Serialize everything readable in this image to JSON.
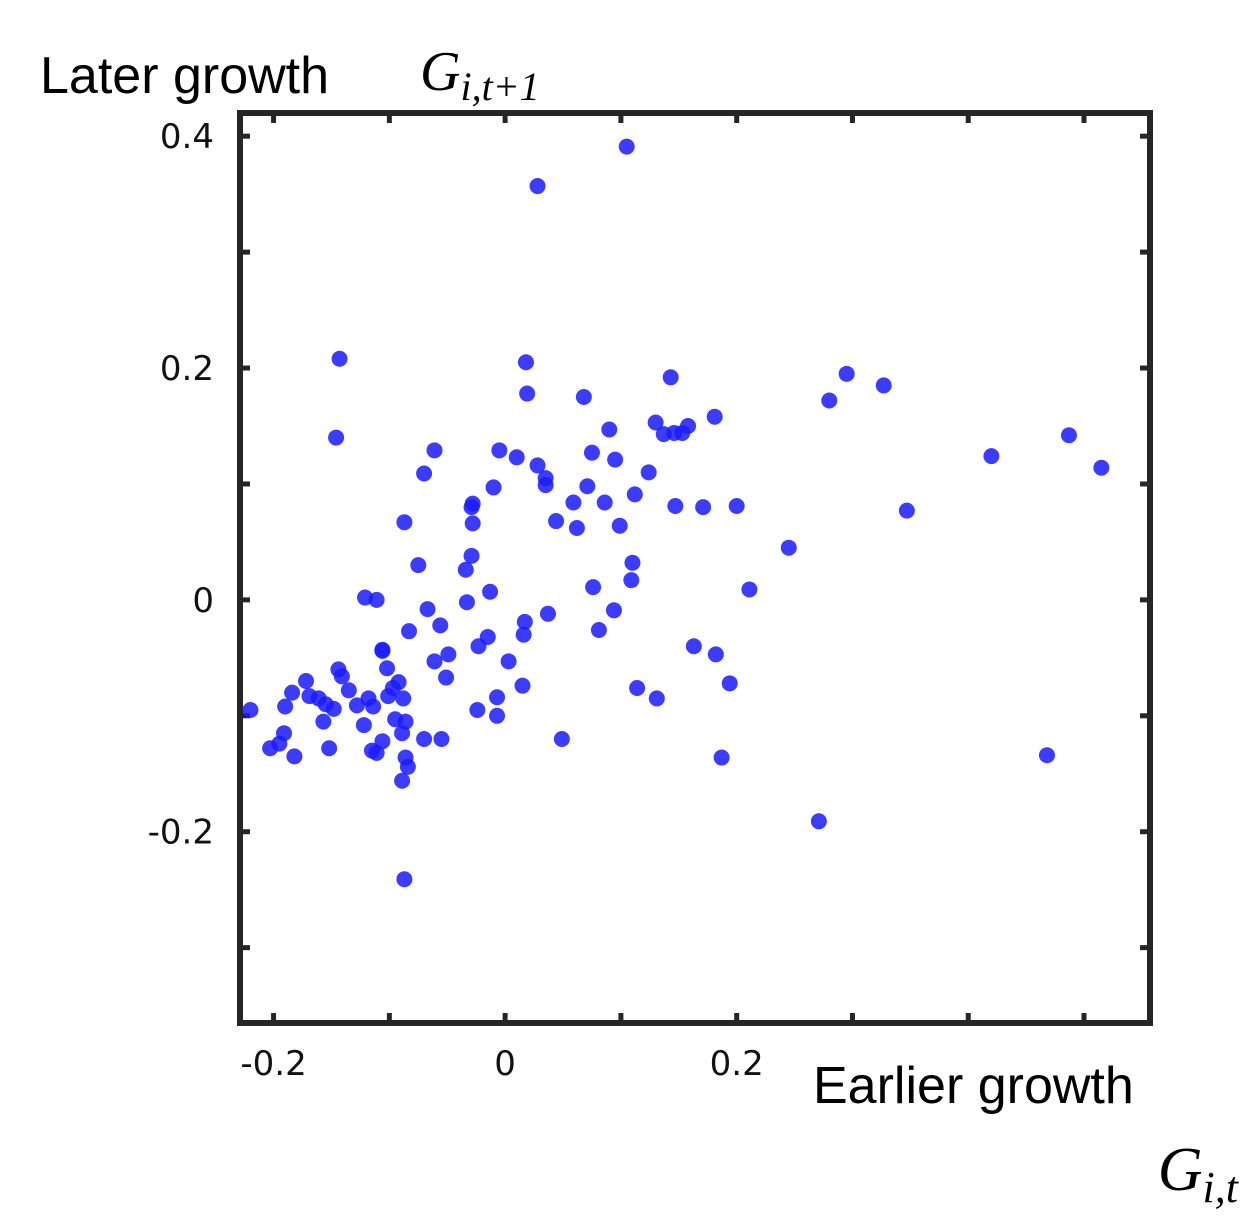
{
  "chart_data": {
    "type": "scatter",
    "y_label": "Later growth",
    "y_label_math": {
      "base": "G",
      "sub": "i,t+1"
    },
    "x_label": "Earlier growth",
    "x_label_math": {
      "base": "G",
      "sub": "i,t"
    },
    "xlim": [
      -0.229,
      0.557
    ],
    "ylim": [
      -0.365,
      0.42
    ],
    "xticks": [
      -0.2,
      {
        "value": -0.1,
        "label": null
      },
      0,
      {
        "value": 0.1,
        "label": null
      },
      0.2,
      {
        "value": 0.3,
        "label": null
      },
      {
        "value": 0.4,
        "label": null
      },
      {
        "value": 0.5,
        "label": null
      }
    ],
    "yticks": [
      {
        "value": -0.3,
        "label": null
      },
      -0.2,
      {
        "value": -0.1,
        "label": null
      },
      0,
      {
        "value": 0.1,
        "label": null
      },
      0.2,
      {
        "value": 0.3,
        "label": null
      },
      0.4
    ],
    "grid": false,
    "series": [
      {
        "name": null,
        "color": "#1a1aff",
        "x": [
          0.105,
          0.028,
          -0.143,
          0.018,
          -0.146,
          0.019,
          0.068,
          0.143,
          0.295,
          0.327,
          0.28,
          0.181,
          0.13,
          0.158,
          0.137,
          0.146,
          0.153,
          0.09,
          0.487,
          -0.061,
          -0.005,
          0.075,
          0.01,
          0.095,
          0.42,
          0.515,
          0.028,
          0.124,
          -0.07,
          0.035,
          0.035,
          -0.01,
          0.071,
          0.112,
          0.059,
          0.086,
          -0.028,
          -0.029,
          0.147,
          0.171,
          0.2,
          0.347,
          0.044,
          -0.087,
          -0.028,
          0.062,
          0.099,
          0.245,
          -0.029,
          0.11,
          -0.075,
          -0.034,
          0.076,
          0.109,
          0.211,
          -0.013,
          -0.121,
          -0.111,
          -0.033,
          -0.067,
          0.094,
          0.037,
          0.017,
          0.016,
          -0.056,
          -0.083,
          -0.015,
          0.081,
          -0.023,
          0.163,
          0.182,
          -0.106,
          -0.049,
          -0.106,
          0.003,
          -0.061,
          -0.144,
          -0.102,
          -0.141,
          -0.051,
          -0.172,
          -0.092,
          0.194,
          0.114,
          -0.097,
          0.015,
          -0.135,
          -0.184,
          -0.169,
          -0.101,
          -0.161,
          -0.118,
          -0.088,
          0.131,
          -0.007,
          -0.155,
          -0.19,
          -0.128,
          -0.114,
          -0.148,
          -0.22,
          -0.024,
          -0.007,
          -0.095,
          -0.086,
          -0.157,
          -0.122,
          -0.191,
          -0.089,
          -0.106,
          -0.07,
          -0.055,
          0.049,
          -0.195,
          -0.203,
          -0.152,
          -0.115,
          -0.111,
          -0.182,
          -0.086,
          0.187,
          0.468,
          -0.084,
          -0.089,
          0.271,
          -0.087
        ],
        "values": [
          0.391,
          0.357,
          0.208,
          0.205,
          0.14,
          0.178,
          0.175,
          0.192,
          0.195,
          0.185,
          0.172,
          0.158,
          0.153,
          0.15,
          0.143,
          0.144,
          0.144,
          0.147,
          0.142,
          0.129,
          0.129,
          0.127,
          0.123,
          0.121,
          0.124,
          0.114,
          0.116,
          0.11,
          0.109,
          0.105,
          0.099,
          0.097,
          0.098,
          0.091,
          0.084,
          0.084,
          0.083,
          0.08,
          0.081,
          0.08,
          0.081,
          0.077,
          0.068,
          0.067,
          0.066,
          0.062,
          0.064,
          0.045,
          0.038,
          0.032,
          0.03,
          0.026,
          0.011,
          0.017,
          0.009,
          0.007,
          0.002,
          0.0,
          -0.002,
          -0.008,
          -0.009,
          -0.012,
          -0.019,
          -0.03,
          -0.022,
          -0.027,
          -0.032,
          -0.026,
          -0.04,
          -0.04,
          -0.047,
          -0.043,
          -0.047,
          -0.044,
          -0.053,
          -0.053,
          -0.06,
          -0.059,
          -0.066,
          -0.067,
          -0.07,
          -0.071,
          -0.072,
          -0.076,
          -0.076,
          -0.074,
          -0.078,
          -0.08,
          -0.083,
          -0.083,
          -0.085,
          -0.085,
          -0.085,
          -0.085,
          -0.084,
          -0.09,
          -0.092,
          -0.091,
          -0.092,
          -0.094,
          -0.095,
          -0.095,
          -0.1,
          -0.103,
          -0.105,
          -0.105,
          -0.108,
          -0.115,
          -0.115,
          -0.122,
          -0.12,
          -0.12,
          -0.12,
          -0.124,
          -0.128,
          -0.128,
          -0.13,
          -0.132,
          -0.135,
          -0.136,
          -0.136,
          -0.134,
          -0.144,
          -0.156,
          -0.191,
          -0.241
        ]
      }
    ]
  }
}
